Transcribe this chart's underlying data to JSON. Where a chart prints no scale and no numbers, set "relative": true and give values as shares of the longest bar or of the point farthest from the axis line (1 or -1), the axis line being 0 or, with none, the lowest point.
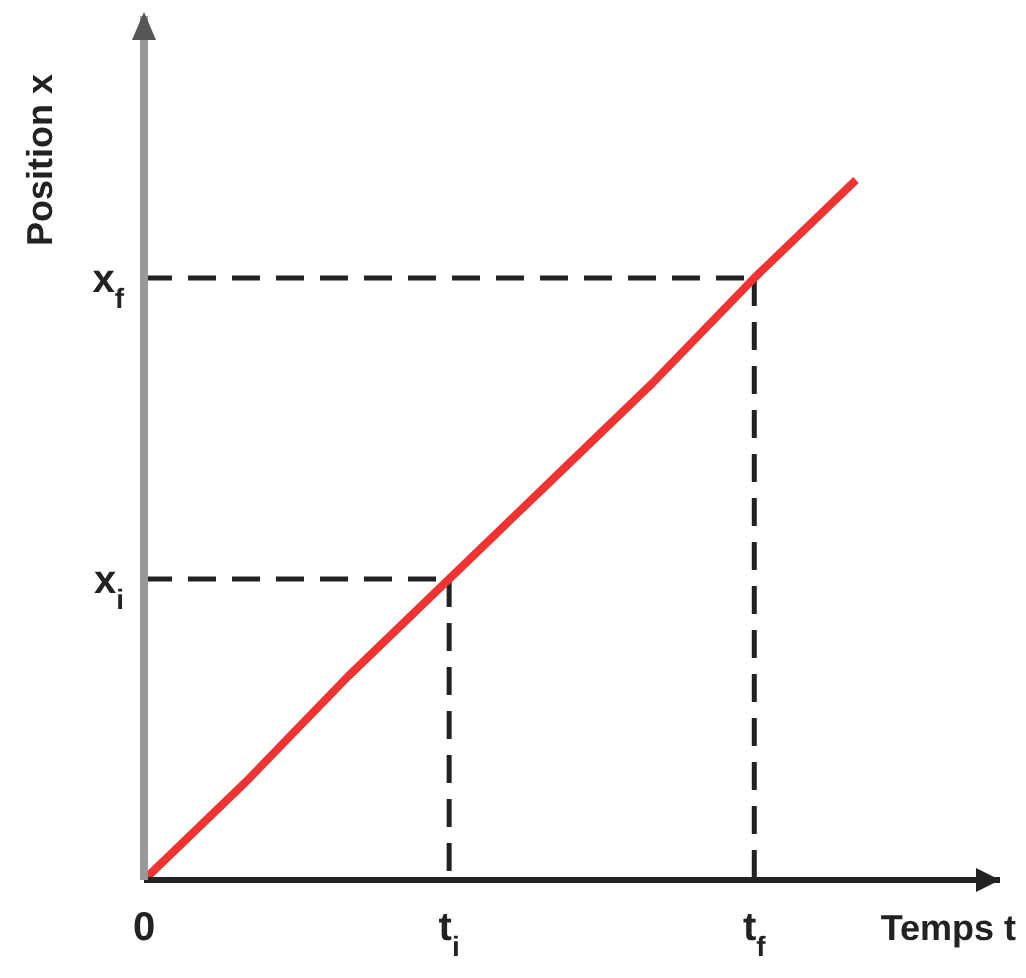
{
  "chart_data": {
    "type": "line",
    "xlabel": "Temps t",
    "ylabel": "Position x",
    "relative": true,
    "categories": [
      "0",
      null,
      null,
      "t$_{i}$",
      null,
      null,
      "t$_{f}$",
      null
    ],
    "series": [
      {
        "color": "#ee3333",
        "values": [
          0,
          0.14,
          0.29,
          0.43,
          0.57,
          0.71,
          0.86,
          1
        ]
      }
    ],
    "ref_lines": [
      {
        "axis": "x",
        "value": "t$_{i}$",
        "line_style": "dashed"
      },
      {
        "axis": "x",
        "value": "t$_{f}$",
        "line_style": "dashed"
      },
      {
        "axis": "y",
        "value": 0.43,
        "label": "x$_{i}$",
        "line_style": "dashed"
      },
      {
        "axis": "y",
        "value": 0.86,
        "label": "x$_{f}$",
        "line_style": "dashed"
      }
    ],
    "marker": "none",
    "line_style": "solid"
  }
}
